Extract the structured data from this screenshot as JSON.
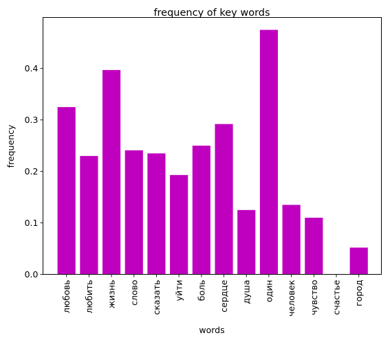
{
  "chart_data": {
    "type": "bar",
    "title": "frequency of key words",
    "xlabel": "words",
    "ylabel": "frequency",
    "categories": [
      "любовь",
      "любить",
      "жизнь",
      "слово",
      "сказать",
      "уйти",
      "боль",
      "сердце",
      "душа",
      "один",
      "человек",
      "чувство",
      "счастье",
      "город"
    ],
    "values": [
      0.325,
      0.23,
      0.397,
      0.241,
      0.235,
      0.193,
      0.25,
      0.292,
      0.125,
      0.475,
      0.135,
      0.11,
      0.0,
      0.052
    ],
    "yticks": [
      0.0,
      0.1,
      0.2,
      0.3,
      0.4
    ],
    "ytick_labels": [
      "0.0",
      "0.1",
      "0.2",
      "0.3",
      "0.4"
    ],
    "ylim": [
      0.0,
      0.499
    ],
    "bar_color": "#bf00bf",
    "grid": false,
    "legend": "none"
  }
}
